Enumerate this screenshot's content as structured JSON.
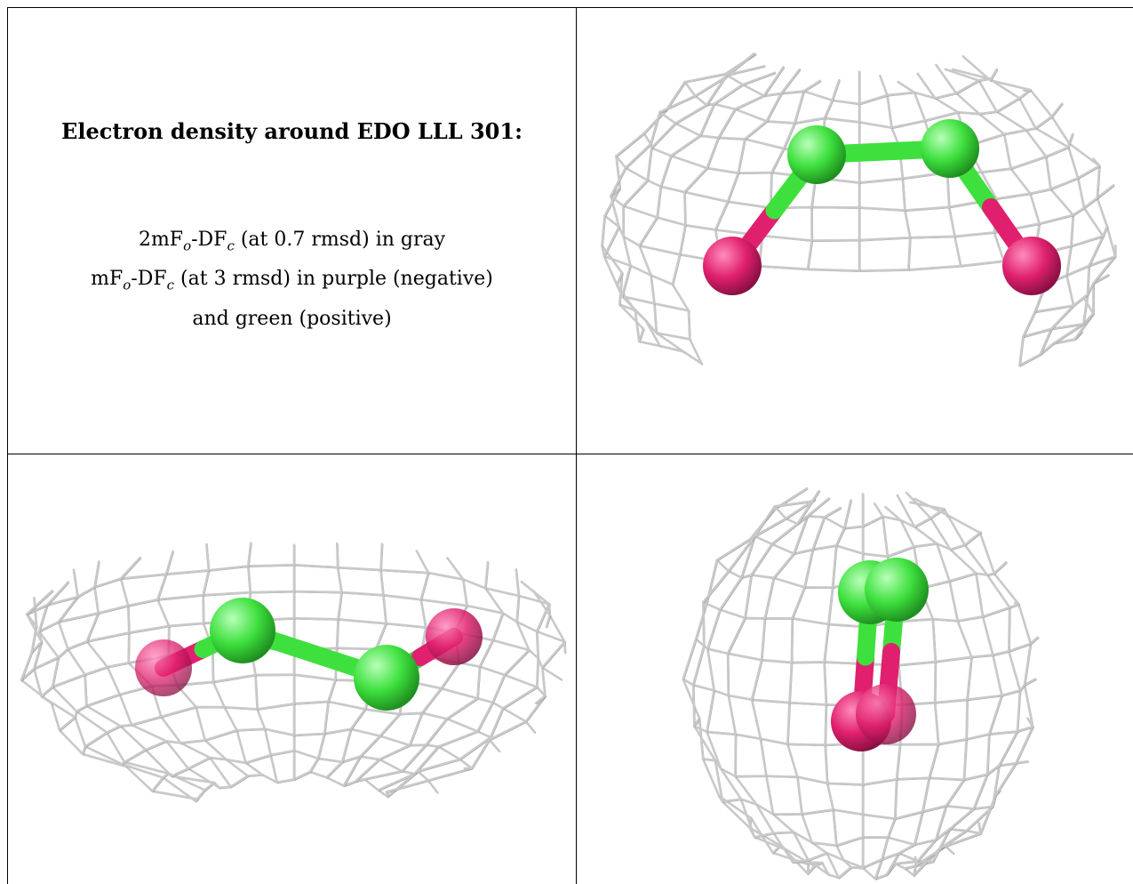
{
  "text": {
    "title": "Electron density around EDO LLL 301:",
    "legend_line1_main": "2mF",
    "legend_line1_sub1": "o",
    "legend_line1_mid": "-DF",
    "legend_line1_sub2": "c",
    "legend_line1_rest": " (at 0.7 rmsd) in gray",
    "legend_line2_main": "mF",
    "legend_line2_sub1": "o",
    "legend_line2_mid": "-DF",
    "legend_line2_sub2": "c",
    "legend_line2_rest": " (at 3 rmsd) in purple (negative)",
    "legend_line3": "and green (positive)"
  },
  "colors": {
    "mesh": "#c9c9c9",
    "carbon": "#3ee03e",
    "oxygen": "#e0206e",
    "border": "#000000"
  },
  "panels": [
    {
      "name": "view-top-right",
      "molecule": "EDO",
      "atoms": [
        "O",
        "C",
        "C",
        "O"
      ]
    },
    {
      "name": "view-bottom-left",
      "molecule": "EDO",
      "atoms": [
        "O",
        "C",
        "C",
        "O"
      ]
    },
    {
      "name": "view-bottom-right",
      "molecule": "EDO",
      "atoms": [
        "O",
        "C",
        "C",
        "O"
      ]
    }
  ]
}
